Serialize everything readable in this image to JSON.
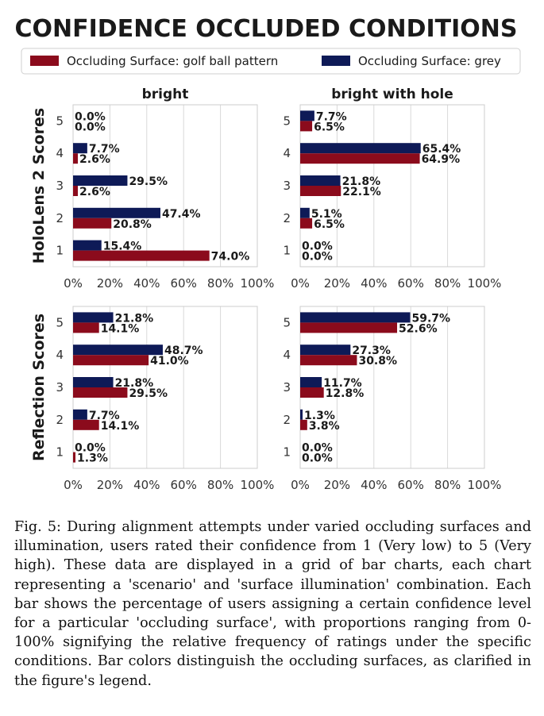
{
  "figure": {
    "title": "CONFIDENCE OCCLUDED CONDITIONS",
    "legend": [
      {
        "label": "Occluding Surface: golf ball pattern",
        "color": "#8b0b1c"
      },
      {
        "label": "Occluding Surface: grey",
        "color": "#0e1a57"
      }
    ]
  },
  "chart_data": [
    {
      "type": "bar",
      "orientation": "horizontal",
      "title": "bright",
      "row_label": "HoloLens 2 Scores",
      "categories": [
        "5",
        "4",
        "3",
        "2",
        "1"
      ],
      "series": [
        {
          "name": "Occluding Surface: grey",
          "values": [
            0.0,
            7.7,
            29.5,
            47.4,
            15.4
          ]
        },
        {
          "name": "Occluding Surface: golf ball pattern",
          "values": [
            0.0,
            2.6,
            2.6,
            20.8,
            74.0
          ]
        }
      ],
      "xlim": [
        0,
        100
      ],
      "xticks": [
        "0%",
        "20%",
        "40%",
        "60%",
        "80%",
        "100%"
      ],
      "grid": true
    },
    {
      "type": "bar",
      "orientation": "horizontal",
      "title": "bright with hole",
      "row_label": "",
      "categories": [
        "5",
        "4",
        "3",
        "2",
        "1"
      ],
      "series": [
        {
          "name": "Occluding Surface: grey",
          "values": [
            7.7,
            65.4,
            21.8,
            5.1,
            0.0
          ]
        },
        {
          "name": "Occluding Surface: golf ball pattern",
          "values": [
            6.5,
            64.9,
            22.1,
            6.5,
            0.0
          ]
        }
      ],
      "xlim": [
        0,
        100
      ],
      "xticks": [
        "0%",
        "20%",
        "40%",
        "60%",
        "80%",
        "100%"
      ],
      "grid": true
    },
    {
      "type": "bar",
      "orientation": "horizontal",
      "title": "",
      "row_label": "Reflection Scores",
      "categories": [
        "5",
        "4",
        "3",
        "2",
        "1"
      ],
      "series": [
        {
          "name": "Occluding Surface: grey",
          "values": [
            21.8,
            48.7,
            21.8,
            7.7,
            0.0
          ]
        },
        {
          "name": "Occluding Surface: golf ball pattern",
          "values": [
            14.1,
            41.0,
            29.5,
            14.1,
            1.3
          ]
        }
      ],
      "xlim": [
        0,
        100
      ],
      "xticks": [
        "0%",
        "20%",
        "40%",
        "60%",
        "80%",
        "100%"
      ],
      "grid": true
    },
    {
      "type": "bar",
      "orientation": "horizontal",
      "title": "",
      "row_label": "",
      "categories": [
        "5",
        "4",
        "3",
        "2",
        "1"
      ],
      "series": [
        {
          "name": "Occluding Surface: grey",
          "values": [
            59.7,
            27.3,
            11.7,
            1.3,
            0.0
          ]
        },
        {
          "name": "Occluding Surface: golf ball pattern",
          "values": [
            52.6,
            30.8,
            12.8,
            3.8,
            0.0
          ]
        }
      ],
      "xlim": [
        0,
        100
      ],
      "xticks": [
        "0%",
        "20%",
        "40%",
        "60%",
        "80%",
        "100%"
      ],
      "grid": true
    }
  ],
  "caption": "Fig. 5: During alignment attempts under varied occluding surfaces and illumination, users rated their confidence from 1 (Very low) to 5 (Very high). These data are displayed in a grid of bar charts, each chart representing a 'scenario' and 'surface illumination' combination. Each bar shows the percentage of users assigning a certain confidence level for a particular 'occluding surface', with proportions ranging from 0-100% signifying the relative frequency of ratings under the specific conditions. Bar colors distinguish the occluding surfaces, as clarified in the figure's legend."
}
